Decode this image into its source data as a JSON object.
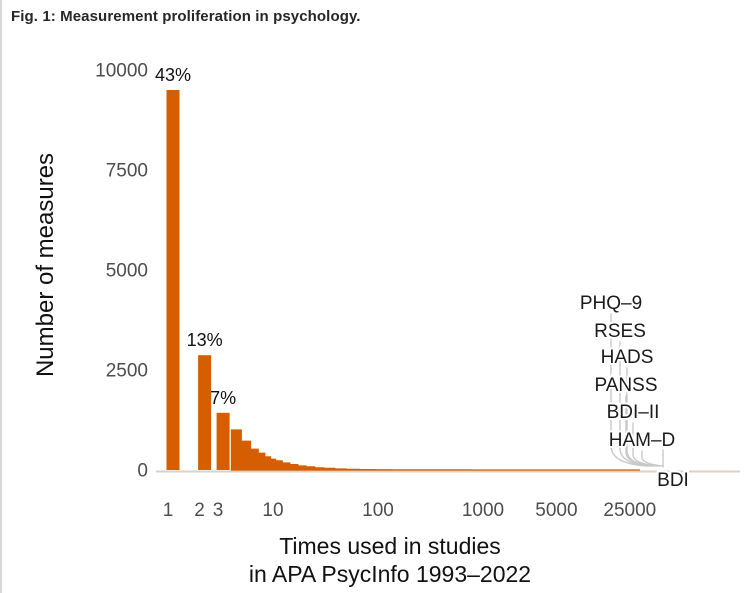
{
  "figure": {
    "title": "Fig. 1: Measurement proliferation in psychology."
  },
  "chart_data": {
    "type": "bar",
    "title": "Fig. 1: Measurement proliferation in psychology.",
    "xlabel_line1": "Times used in studies",
    "xlabel_line2": "in APA PsycInfo 1993–2022",
    "ylabel": "Number of measures",
    "x_scale": "log10",
    "x_ticks": [
      1,
      2,
      3,
      10,
      100,
      1000,
      5000,
      25000
    ],
    "y_ticks": [
      0,
      2500,
      5000,
      7500,
      10000
    ],
    "ylim": [
      0,
      10000
    ],
    "xlim": [
      1,
      25000
    ],
    "grid": "off",
    "bar_color": "#D55E00",
    "axis_line_color": "#ddd2c5",
    "tick_label_color": "#4d4d4d",
    "leader_line_color": "#c9c9c9",
    "bars": [
      [
        1,
        9500
      ],
      [
        2,
        2870
      ],
      [
        3,
        1430
      ],
      [
        4,
        1000
      ],
      [
        5,
        720
      ],
      [
        6,
        520
      ],
      [
        7,
        420
      ],
      [
        8,
        330
      ],
      [
        9,
        270
      ],
      [
        10,
        230
      ],
      [
        12,
        175
      ],
      [
        14,
        135
      ],
      [
        17,
        100
      ],
      [
        20,
        78
      ],
      [
        25,
        55
      ],
      [
        30,
        40
      ],
      [
        40,
        26
      ],
      [
        50,
        18
      ],
      [
        70,
        11
      ],
      [
        100,
        7
      ],
      [
        150,
        4
      ],
      [
        200,
        3
      ],
      [
        300,
        2
      ],
      [
        500,
        2
      ],
      [
        1000,
        1
      ],
      [
        2500,
        1
      ],
      [
        5000,
        1
      ],
      [
        10000,
        1
      ],
      [
        25000,
        1
      ]
    ],
    "bar_percent_labels": [
      {
        "x": 1,
        "count": 9500,
        "label": "43%"
      },
      {
        "x": 2,
        "count": 2870,
        "label": "13%"
      },
      {
        "x": 3,
        "count": 1430,
        "label": "7%"
      }
    ],
    "measure_annotations": [
      "PHQ–9",
      "RSES",
      "HADS",
      "PANSS",
      "BDI–II",
      "HAM–D",
      "BDI"
    ]
  }
}
